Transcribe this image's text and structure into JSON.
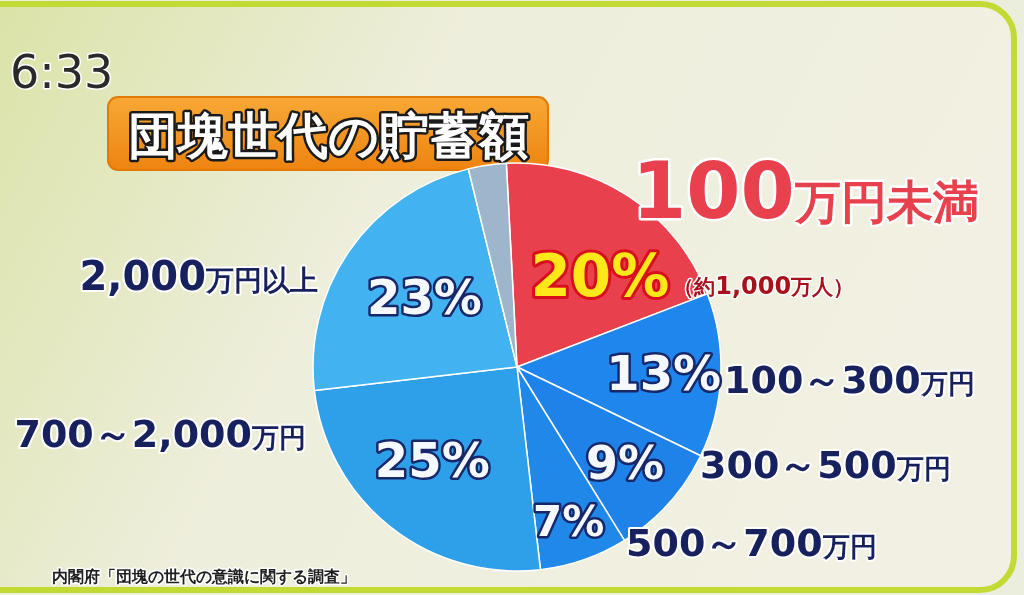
{
  "chart_data": {
    "type": "pie",
    "title": "団塊世代の貯蓄額",
    "categories": [
      "100万円未満",
      "100～300万円",
      "300～500万円",
      "500～700万円",
      "700～2,000万円",
      "2,000万円以上",
      null
    ],
    "values": [
      20,
      13,
      9,
      7,
      25,
      23,
      3
    ],
    "colors": [
      "#e8404c",
      "#1e86ec",
      "#1f82e8",
      "#2088e8",
      "#2ea0ea",
      "#42b2f0",
      "#9eb6cc"
    ],
    "value_labels": [
      "20%",
      "13%",
      "9%",
      "7%",
      "25%",
      "23%",
      null
    ],
    "annotations": [
      "（約1,000万人）",
      "内閣府「団塊の世代の意識に関する調査」",
      "6:33"
    ]
  }
}
